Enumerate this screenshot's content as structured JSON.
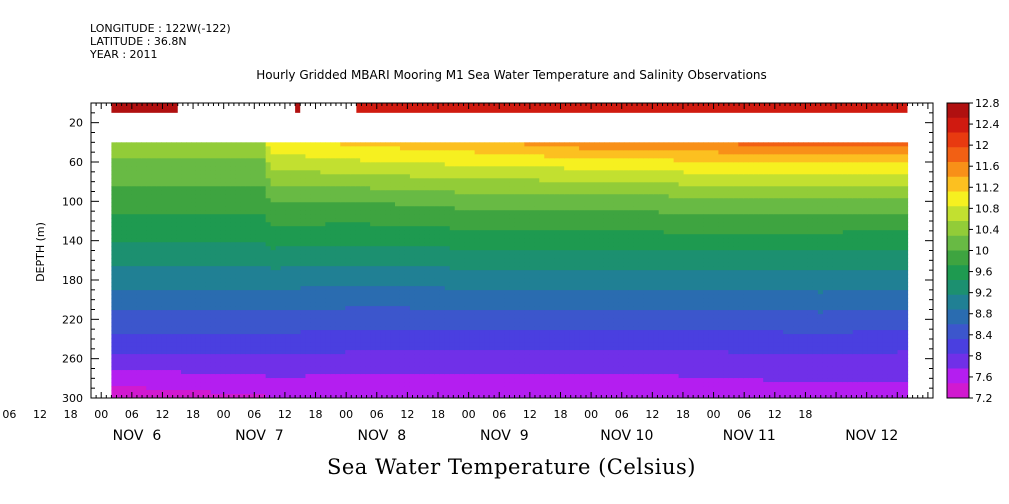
{
  "header": {
    "longitude": "LONGITUDE : 122W(-122)",
    "latitude": "LATITUDE : 36.8N",
    "year": "YEAR : 2011"
  },
  "chart_data": {
    "type": "heatmap",
    "title": "Hourly Gridded MBARI Mooring M1 Sea Water Temperature and Salinity Observations",
    "bottom_title": "Sea Water Temperature (Celsius)",
    "ylabel": "DEPTH (m)",
    "ylim": [
      300,
      0
    ],
    "y_ticks": [
      20,
      60,
      100,
      140,
      180,
      220,
      260,
      300
    ],
    "x_hour_labels": [
      "00",
      "06",
      "12",
      "18",
      "00",
      "06",
      "12",
      "18",
      "00",
      "06",
      "12",
      "18",
      "00",
      "06",
      "12",
      "18",
      "00",
      "06",
      "12",
      "18",
      "00",
      "06",
      "12",
      "18",
      "00",
      "06",
      "12",
      "18"
    ],
    "x_day_labels": [
      "NOV  6",
      "NOV  7",
      "NOV  8",
      "NOV  9",
      "NOV 10",
      "NOV 11",
      "NOV 12"
    ],
    "colorbar_ticks": [
      12.8,
      12.4,
      12,
      11.6,
      11.2,
      10.8,
      10.4,
      10,
      9.6,
      9.2,
      8.8,
      8.4,
      8,
      7.6,
      7.2
    ],
    "colorbar_colors": [
      "#b01010",
      "#d01a10",
      "#e83a10",
      "#f26014",
      "#f89018",
      "#fcc020",
      "#f6f020",
      "#c2e030",
      "#92cc38",
      "#68ba44",
      "#3ea440",
      "#1e9a50",
      "#1c9070",
      "#208094",
      "#2a6cb0",
      "#3c56cc",
      "#4a3fe0",
      "#7030e8",
      "#b41ef0",
      "#d11ad0"
    ],
    "crange": [
      7.2,
      12.8
    ],
    "day_start_hours": [
      0,
      24,
      48,
      72,
      96,
      120,
      144,
      168
    ],
    "x_hour_range": [
      -2,
      163
    ],
    "surface_segments": [
      {
        "start_hour": 2,
        "end_hour": 15,
        "temperature": 12.7
      },
      {
        "start_hour": 38,
        "end_hour": 39,
        "temperature": 12.8
      },
      {
        "start_hour": 50,
        "end_hour": 158,
        "temperature": 12.5
      }
    ],
    "profiles": [
      {
        "hour": 2,
        "depths": [
          40,
          60,
          100,
          140,
          180,
          220,
          260,
          280,
          300
        ],
        "temperatures": [
          10.5,
          10.2,
          9.85,
          9.45,
          9.0,
          8.5,
          8.0,
          7.6,
          7.3
        ]
      },
      {
        "hour": 32,
        "depths": [
          40,
          60,
          100,
          140,
          180,
          220,
          260,
          280,
          300
        ],
        "temperatures": [
          10.6,
          10.2,
          9.85,
          9.45,
          9.0,
          8.5,
          8.0,
          7.7,
          7.45
        ]
      },
      {
        "hour": 33,
        "depths": [
          40,
          60,
          100,
          140,
          180,
          220,
          260,
          280,
          300
        ],
        "temperatures": [
          11.0,
          10.7,
          10.0,
          9.55,
          9.0,
          8.5,
          8.0,
          7.75,
          7.5
        ]
      },
      {
        "hour": 50,
        "depths": [
          40,
          60,
          100,
          140,
          180,
          220,
          260,
          280,
          300
        ],
        "temperatures": [
          11.2,
          10.8,
          10.0,
          9.5,
          8.95,
          8.45,
          7.95,
          7.7,
          7.5
        ]
      },
      {
        "hour": 70,
        "depths": [
          40,
          60,
          100,
          140,
          180,
          220,
          260,
          280,
          300
        ],
        "temperatures": [
          11.3,
          10.9,
          10.1,
          9.55,
          9.0,
          8.45,
          7.95,
          7.7,
          7.55
        ]
      },
      {
        "hour": 96,
        "depths": [
          40,
          60,
          100,
          140,
          180,
          220,
          260,
          280,
          300
        ],
        "temperatures": [
          11.6,
          11.0,
          10.1,
          9.6,
          9.0,
          8.45,
          7.95,
          7.7,
          7.6
        ]
      },
      {
        "hour": 120,
        "depths": [
          40,
          60,
          100,
          140,
          180,
          220,
          260,
          280,
          300
        ],
        "temperatures": [
          11.7,
          11.1,
          10.2,
          9.6,
          9.05,
          8.45,
          7.95,
          7.75,
          7.6
        ]
      },
      {
        "hour": 141,
        "depths": [
          40,
          60,
          100,
          140,
          180,
          220,
          260,
          280,
          300
        ],
        "temperatures": [
          11.9,
          11.1,
          10.2,
          9.6,
          9.05,
          8.5,
          8.0,
          7.8,
          7.65
        ]
      },
      {
        "hour": 158,
        "depths": [
          40,
          60,
          100,
          140,
          180,
          220,
          260,
          280,
          300
        ],
        "temperatures": [
          11.9,
          11.1,
          10.2,
          9.55,
          9.0,
          8.45,
          7.95,
          7.8,
          7.65
        ]
      }
    ]
  }
}
